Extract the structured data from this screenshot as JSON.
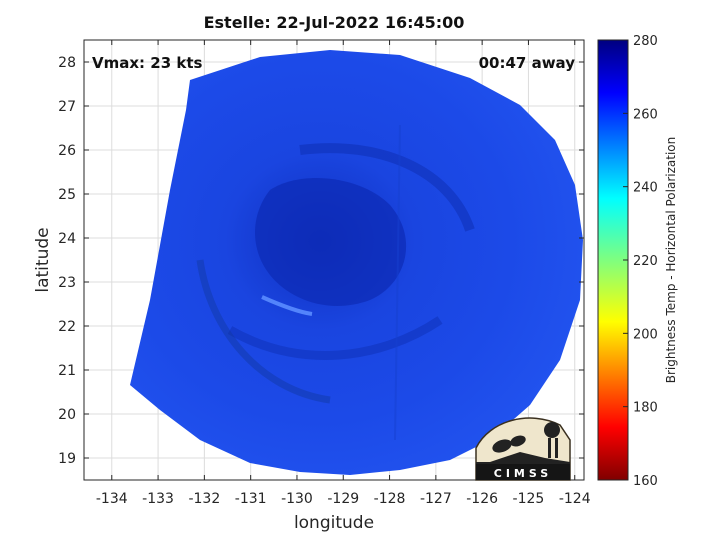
{
  "title": "Estelle: 22-Jul-2022 16:45:00",
  "annotations": {
    "vmax": "Vmax: 23 kts",
    "time_away": "00:47 away"
  },
  "axes": {
    "xlabel": "longitude",
    "ylabel": "latitude",
    "xticks": [
      "-134",
      "-133",
      "-132",
      "-131",
      "-130",
      "-129",
      "-128",
      "-127",
      "-126",
      "-125",
      "-124"
    ],
    "yticks": [
      "28",
      "27",
      "26",
      "25",
      "24",
      "23",
      "22",
      "21",
      "20",
      "19"
    ],
    "xlim": [
      -134.6,
      -123.8
    ],
    "ylim": [
      18.5,
      28.5
    ],
    "grid": true
  },
  "colorbar": {
    "label": "Brightness Temp - Horizontal Polarization",
    "ticks": [
      "280",
      "260",
      "240",
      "220",
      "200",
      "180",
      "160"
    ],
    "range": [
      160,
      280
    ],
    "colormap": "jet"
  },
  "logo": {
    "text": "CIMSS"
  },
  "colors": {
    "swath_base": "#1a47e6",
    "swath_dark": "#0e2ab8",
    "grid": "#dddddd"
  }
}
